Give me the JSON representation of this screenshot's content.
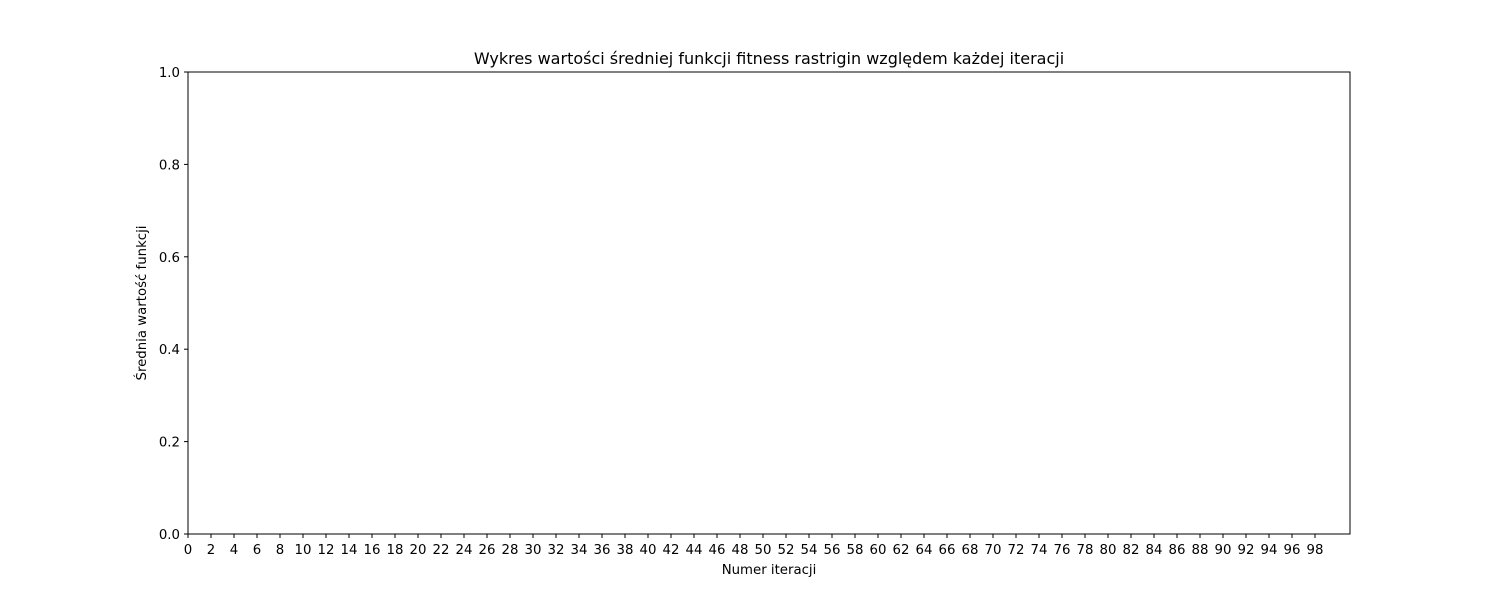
{
  "chart_data": {
    "type": "line",
    "title": "Wykres wartości średniej funkcji fitness rastrigin względem każdej iteracji",
    "xlabel": "Numer iteracji",
    "ylabel": "Średnia wartość funkcji",
    "xlim": [
      0,
      100
    ],
    "ylim": [
      0.0,
      1.0
    ],
    "xticks": [
      0,
      2,
      4,
      6,
      8,
      10,
      12,
      14,
      16,
      18,
      20,
      22,
      24,
      26,
      28,
      30,
      32,
      34,
      36,
      38,
      40,
      42,
      44,
      46,
      48,
      50,
      52,
      54,
      56,
      58,
      60,
      62,
      64,
      66,
      68,
      70,
      72,
      74,
      76,
      78,
      80,
      82,
      84,
      86,
      88,
      90,
      92,
      94,
      96,
      98
    ],
    "xtick_labels": [
      "0",
      "2",
      "4",
      "6",
      "8",
      "10",
      "12",
      "14",
      "16",
      "18",
      "20",
      "22",
      "24",
      "26",
      "28",
      "30",
      "32",
      "34",
      "36",
      "38",
      "40",
      "42",
      "44",
      "46",
      "48",
      "50",
      "52",
      "54",
      "56",
      "58",
      "60",
      "62",
      "64",
      "66",
      "68",
      "70",
      "72",
      "74",
      "76",
      "78",
      "80",
      "82",
      "84",
      "86",
      "88",
      "90",
      "92",
      "94",
      "96",
      "98"
    ],
    "yticks": [
      0.0,
      0.2,
      0.4,
      0.6,
      0.8,
      1.0
    ],
    "ytick_labels": [
      "0.0",
      "0.2",
      "0.4",
      "0.6",
      "0.8",
      "1.0"
    ],
    "series": [],
    "grid": false,
    "colors": {
      "axes": "#000000",
      "background": "#ffffff"
    }
  }
}
